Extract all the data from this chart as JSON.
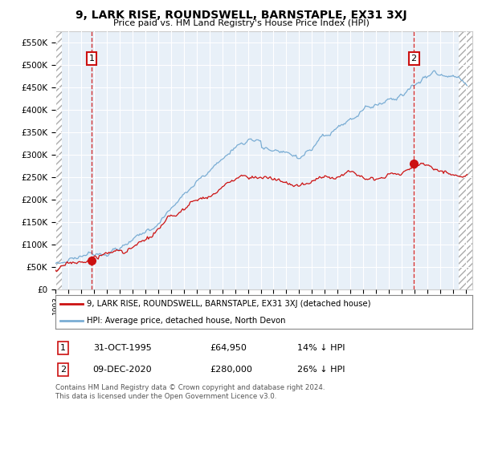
{
  "title": "9, LARK RISE, ROUNDSWELL, BARNSTAPLE, EX31 3XJ",
  "subtitle": "Price paid vs. HM Land Registry's House Price Index (HPI)",
  "legend_line1": "9, LARK RISE, ROUNDSWELL, BARNSTAPLE, EX31 3XJ (detached house)",
  "legend_line2": "HPI: Average price, detached house, North Devon",
  "annotation1_date": "31-OCT-1995",
  "annotation1_price": "£64,950",
  "annotation1_hpi": "14% ↓ HPI",
  "annotation2_date": "09-DEC-2020",
  "annotation2_price": "£280,000",
  "annotation2_hpi": "26% ↓ HPI",
  "footnote": "Contains HM Land Registry data © Crown copyright and database right 2024.\nThis data is licensed under the Open Government Licence v3.0.",
  "sale1_x": 1995.83,
  "sale1_y": 64950,
  "sale2_x": 2020.94,
  "sale2_y": 280000,
  "ylim": [
    0,
    575000
  ],
  "xlim_start": 1993.0,
  "xlim_end": 2025.5,
  "hpi_color": "#7aadd4",
  "sale_color": "#cc1111",
  "bg_color": "#ffffff",
  "plot_bg": "#e8f0f8",
  "grid_color": "#ffffff",
  "hatch_color": "#cccccc"
}
